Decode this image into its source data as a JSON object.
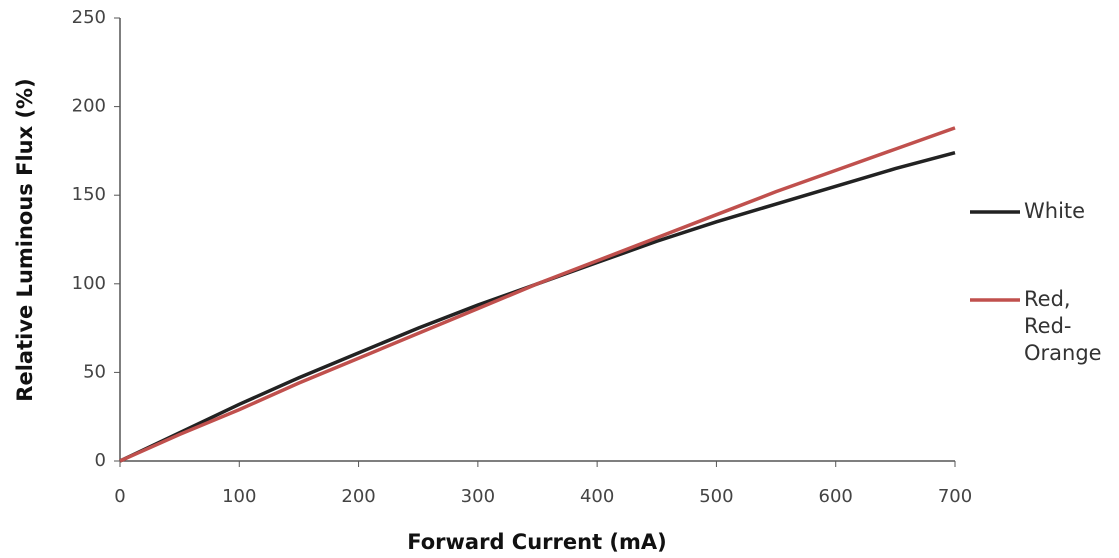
{
  "chart_data": {
    "type": "line",
    "x_label": "Forward Current (mA)",
    "y_label": "Relative Luminous Flux (%)",
    "x": [
      0,
      50,
      100,
      150,
      200,
      250,
      300,
      350,
      400,
      450,
      500,
      550,
      600,
      650,
      700
    ],
    "series": [
      {
        "name": "White",
        "color": "#222222",
        "values": [
          0,
          16,
          32,
          47,
          61,
          75,
          88,
          100,
          112,
          124,
          135,
          145,
          155,
          165,
          174
        ]
      },
      {
        "name": "Red, Red-Orange",
        "color": "#c0504d",
        "values": [
          0,
          15,
          29,
          44,
          58,
          72,
          86,
          100,
          113,
          126,
          139,
          152,
          164,
          176,
          188
        ]
      }
    ],
    "xlim": [
      0,
      700
    ],
    "xticks": [
      0,
      100,
      200,
      300,
      400,
      500,
      600,
      700
    ],
    "ylim": [
      0,
      250
    ],
    "yticks": [
      0,
      50,
      100,
      150,
      200,
      250
    ],
    "grid": false,
    "legend": "right"
  }
}
